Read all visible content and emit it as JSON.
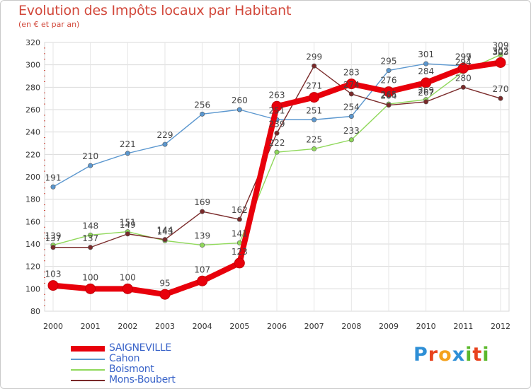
{
  "title": "Evolution des Impôts locaux par Habitant",
  "subtitle": "(en € et par an)",
  "logo": {
    "text": "Proxiti",
    "letters": [
      "P",
      "r",
      "o",
      "x",
      "i",
      "t",
      "i"
    ],
    "colors": [
      "#2e8fd6",
      "#e8431e",
      "#f4a21e",
      "#2e8fd6",
      "#5cb82c",
      "#e8431e",
      "#5cb82c"
    ]
  },
  "chart_data": {
    "type": "line",
    "title": "Evolution des Impôts locaux par Habitant",
    "ylabel": "(en € et par an)",
    "xlabel": "",
    "x": [
      "2000",
      "2001",
      "2002",
      "2003",
      "2004",
      "2005",
      "2006",
      "2007",
      "2008",
      "2009",
      "2010",
      "2011",
      "2012"
    ],
    "ylim": [
      80,
      320
    ],
    "yticks": [
      80,
      100,
      120,
      140,
      160,
      180,
      200,
      220,
      240,
      260,
      280,
      300,
      320
    ],
    "grid": true,
    "legend_position": "bottom-left",
    "series": [
      {
        "name": "SAIGNEVILLE",
        "color": "#e8000b",
        "emphasis": true,
        "values": [
          103,
          100,
          100,
          95,
          107,
          123,
          263,
          271,
          283,
          276,
          284,
          297,
          302
        ]
      },
      {
        "name": "Cahon",
        "color": "#5b97cf",
        "values": [
          191,
          210,
          221,
          229,
          256,
          260,
          251,
          251,
          254,
          295,
          301,
          299,
          303
        ]
      },
      {
        "name": "Boismont",
        "color": "#8fd85a",
        "values": [
          139,
          148,
          151,
          143,
          139,
          141,
          222,
          225,
          233,
          265,
          269,
          294,
          309
        ]
      },
      {
        "name": "Mons-Boubert",
        "color": "#7a2a2a",
        "values": [
          137,
          137,
          149,
          144,
          169,
          162,
          239,
          299,
          274,
          264,
          267,
          280,
          270
        ]
      }
    ]
  }
}
